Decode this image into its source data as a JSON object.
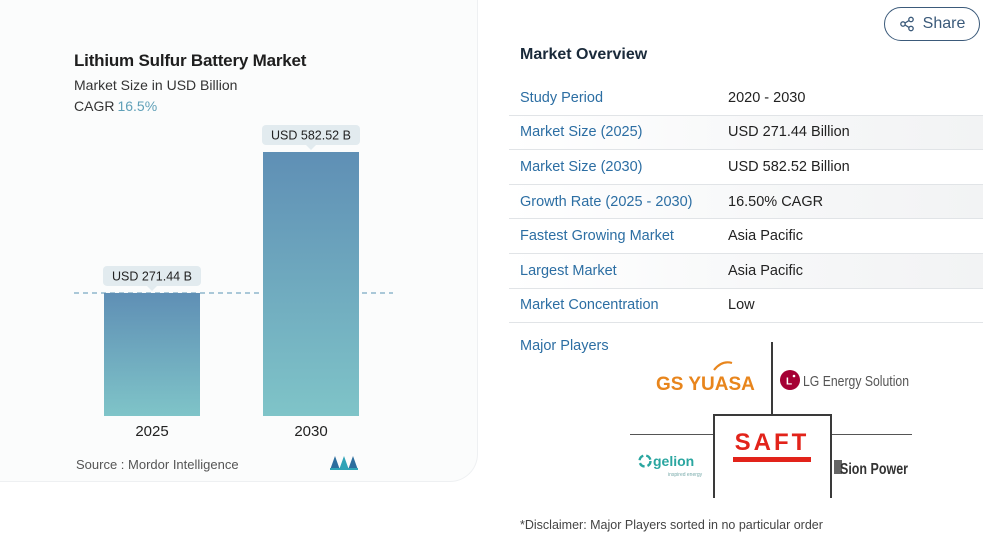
{
  "chart_data": {
    "type": "bar",
    "title": "Lithium Sulfur Battery Market",
    "subtitle": "Market Size in USD Billion",
    "cagr_label": "CAGR",
    "cagr_value": "16.5%",
    "categories": [
      "2025",
      "2030"
    ],
    "values": [
      271.44,
      582.52
    ],
    "data_labels": [
      "USD 271.44 B",
      "USD 582.52 B"
    ],
    "ylim": [
      0,
      582.52
    ],
    "grid": false,
    "reference_line": "dashed line at 2025 value",
    "colors": {
      "bar_top": "#5f8fb5",
      "bar_bottom": "#7fc4c8",
      "label_bg": "#e2ebef"
    }
  },
  "source": "Source :  Mordor Intelligence",
  "share": {
    "label": "Share"
  },
  "overview": {
    "title": "Market Overview",
    "rows": [
      {
        "label": "Study Period",
        "value": "2020 - 2030"
      },
      {
        "label": "Market Size (2025)",
        "value": "USD 271.44 Billion"
      },
      {
        "label": "Market Size (2030)",
        "value": "USD 582.52 Billion"
      },
      {
        "label": "Growth Rate (2025 - 2030)",
        "value": "16.50% CAGR"
      },
      {
        "label": "Fastest Growing Market",
        "value": "Asia Pacific"
      },
      {
        "label": "Largest Market",
        "value": "Asia Pacific"
      },
      {
        "label": "Market Concentration",
        "value": "Low"
      }
    ]
  },
  "players": {
    "label": "Major Players",
    "logos": [
      "GS YUASA",
      "LG Energy Solution",
      "gelion",
      "inspired energy",
      "SAFT",
      "Sion Power"
    ]
  },
  "disclaimer": "*Disclaimer: Major Players sorted in no particular order",
  "colors": {
    "accent": "#2c6ea3",
    "share_border": "#3b5a7a",
    "saft_red": "#e2231a",
    "gs_orange": "#e8851c",
    "gs_green": "#2e8b3e",
    "lg_red": "#a50034"
  }
}
